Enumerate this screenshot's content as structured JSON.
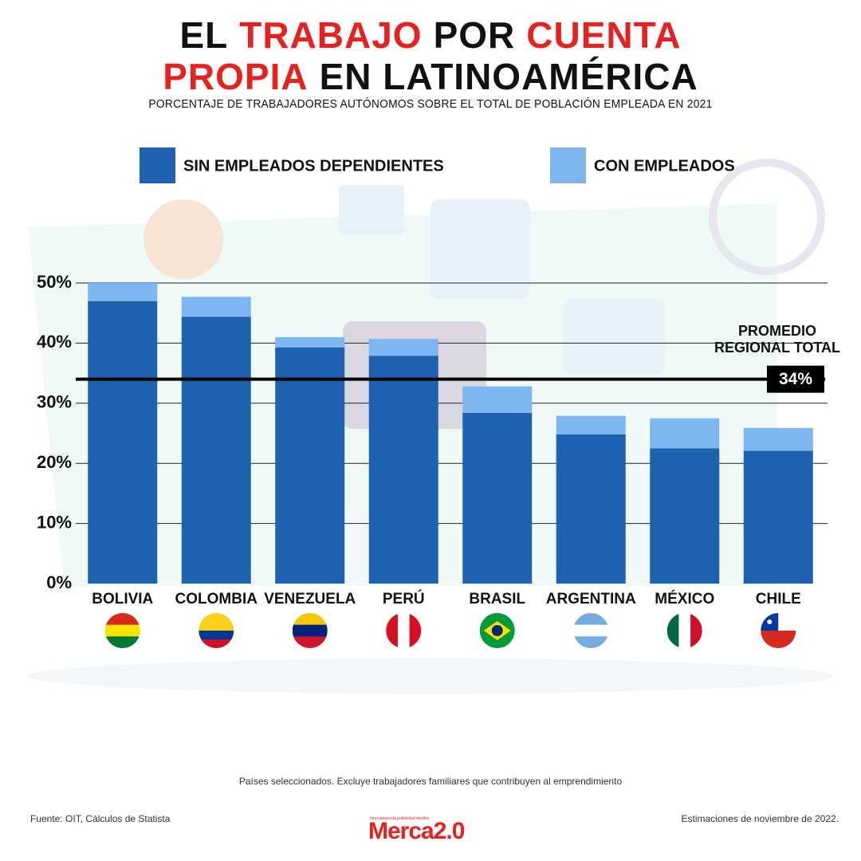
{
  "chart_data": {
    "type": "stacked_bar",
    "title": [
      [
        {
          "text": "EL",
          "color": "#111111"
        },
        {
          "text": "TRABAJO",
          "color": "#e8201e"
        },
        {
          "text": "POR",
          "color": "#111111"
        },
        {
          "text": "CUENTA",
          "color": "#e8201e"
        }
      ],
      [
        {
          "text": "PROPIA",
          "color": "#e8201e"
        },
        {
          "text": "EN LATINOAMÉRICA",
          "color": "#111111"
        }
      ]
    ],
    "subtitle": "PORCENTAJE DE TRABAJADORES AUTÓNOMOS SOBRE EL TOTAL DE POBLACIÓN EMPLEADA EN 2021",
    "categories": [
      "BOLIVIA",
      "COLOMBIA",
      "VENEZUELA",
      "PERÚ",
      "BRASIL",
      "ARGENTINA",
      "MÉXICO",
      "CHILE"
    ],
    "series": [
      {
        "name": "SIN EMPLEADOS DEPENDIENTES",
        "color": "#1c62b0",
        "values": [
          47,
          44.4,
          39.3,
          37.9,
          28.4,
          24.8,
          22.5,
          22.1
        ]
      },
      {
        "name": "CON EMPLEADOS",
        "color": "#7db6f0",
        "values": [
          3,
          3.3,
          1.7,
          2.8,
          4.4,
          3.1,
          5.0,
          3.8
        ]
      }
    ],
    "ylim": [
      0,
      50
    ],
    "yticks": [
      {
        "value": 0,
        "label": "0%"
      },
      {
        "value": 10,
        "label": "10%"
      },
      {
        "value": 20,
        "label": "20%"
      },
      {
        "value": 30,
        "label": "30%"
      },
      {
        "value": 40,
        "label": "40%"
      },
      {
        "value": 50,
        "label": "50%"
      }
    ],
    "grid": true,
    "reference_line": {
      "value": 34,
      "label": "34%",
      "text": [
        "PROMEDIO",
        "REGIONAL TOTAL"
      ]
    },
    "note": "Países seleccionados. Excluye trabajadores familiares que contribuyen al emprendimiento",
    "source": "Fuente: OIT, Cálculos de Statista",
    "date_note": "Estimaciones de noviembre de 2022.",
    "logo": "Merca2.0",
    "logo_tagline": "mercadotecnia publicidad medios"
  }
}
